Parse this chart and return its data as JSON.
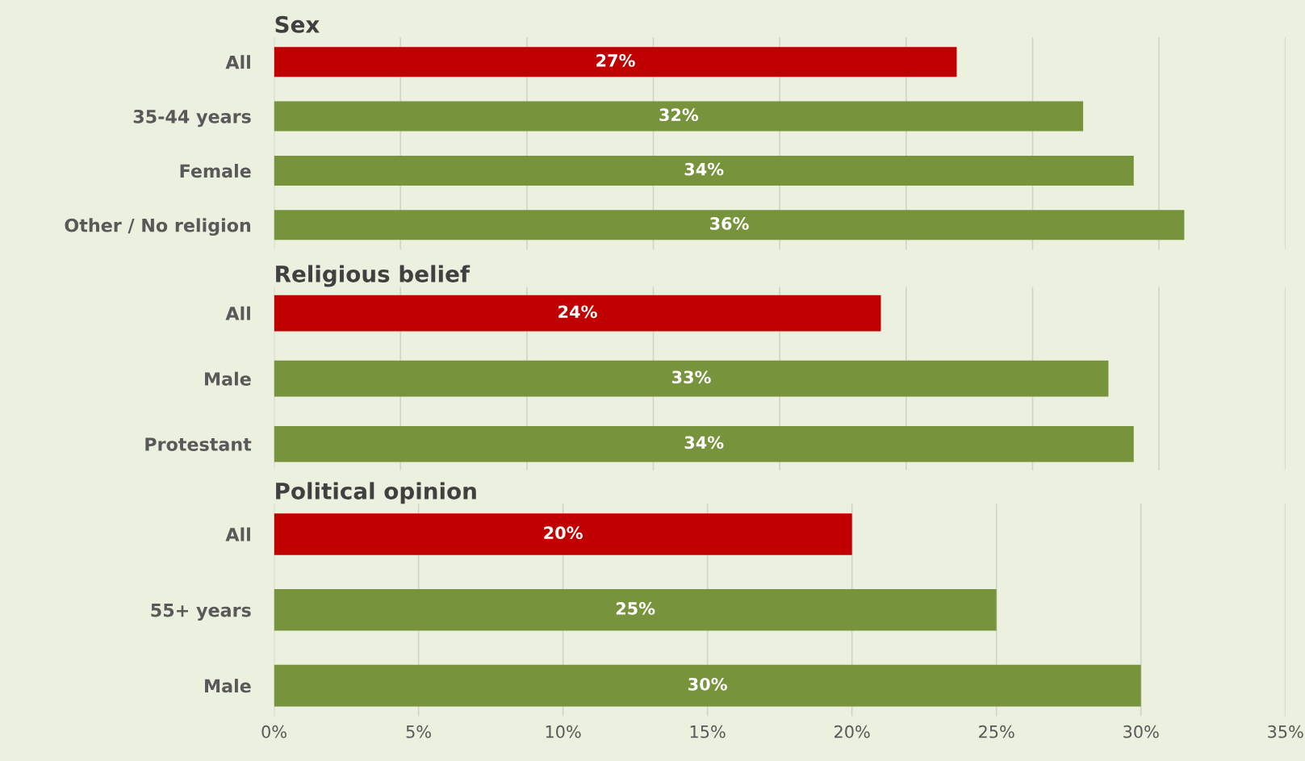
{
  "chart_data": [
    {
      "type": "bar",
      "orientation": "horizontal",
      "title": "Sex",
      "categories": [
        "All",
        "35-44 years",
        "Female",
        "Other / No religion"
      ],
      "values": [
        27,
        32,
        34,
        36
      ],
      "colors": [
        "#c00000",
        "#77933c",
        "#77933c",
        "#77933c"
      ],
      "value_labels": [
        "27%",
        "32%",
        "34%",
        "36%"
      ],
      "xlim": [
        0,
        40
      ],
      "xticks": [
        {
          "value": 0,
          "label": null
        },
        {
          "value": 5,
          "label": null
        },
        {
          "value": 10,
          "label": null
        },
        {
          "value": 15,
          "label": null
        },
        {
          "value": 20,
          "label": null
        },
        {
          "value": 25,
          "label": null
        },
        {
          "value": 30,
          "label": null
        },
        {
          "value": 35,
          "label": null
        },
        {
          "value": 40,
          "label": null
        }
      ],
      "grid": "x",
      "tick_labels": "y"
    },
    {
      "type": "bar",
      "orientation": "horizontal",
      "title": "Religious belief",
      "categories": [
        "All",
        "Male",
        "Protestant"
      ],
      "values": [
        24,
        33,
        34
      ],
      "colors": [
        "#c00000",
        "#77933c",
        "#77933c"
      ],
      "value_labels": [
        "24%",
        "33%",
        "34%"
      ],
      "xlim": [
        0,
        40
      ],
      "xticks": [
        {
          "value": 0,
          "label": null
        },
        {
          "value": 5,
          "label": null
        },
        {
          "value": 10,
          "label": null
        },
        {
          "value": 15,
          "label": null
        },
        {
          "value": 20,
          "label": null
        },
        {
          "value": 25,
          "label": null
        },
        {
          "value": 30,
          "label": null
        },
        {
          "value": 35,
          "label": null
        },
        {
          "value": 40,
          "label": null
        }
      ],
      "grid": "x",
      "tick_labels": "y"
    },
    {
      "type": "bar",
      "orientation": "horizontal",
      "title": "Political opinion",
      "categories": [
        "All",
        "55+ years",
        "Male"
      ],
      "values": [
        20,
        25,
        30
      ],
      "colors": [
        "#c00000",
        "#77933c",
        "#77933c"
      ],
      "value_labels": [
        "20%",
        "25%",
        "30%"
      ],
      "xlim": [
        0,
        35
      ],
      "xticks": [
        {
          "value": 0,
          "label": "0%"
        },
        {
          "value": 5,
          "label": "5%"
        },
        {
          "value": 10,
          "label": "10%"
        },
        {
          "value": 15,
          "label": "15%"
        },
        {
          "value": 20,
          "label": "20%"
        },
        {
          "value": 25,
          "label": "25%"
        },
        {
          "value": 30,
          "label": "30%"
        },
        {
          "value": 35,
          "label": "35%"
        }
      ],
      "grid": "x"
    }
  ]
}
